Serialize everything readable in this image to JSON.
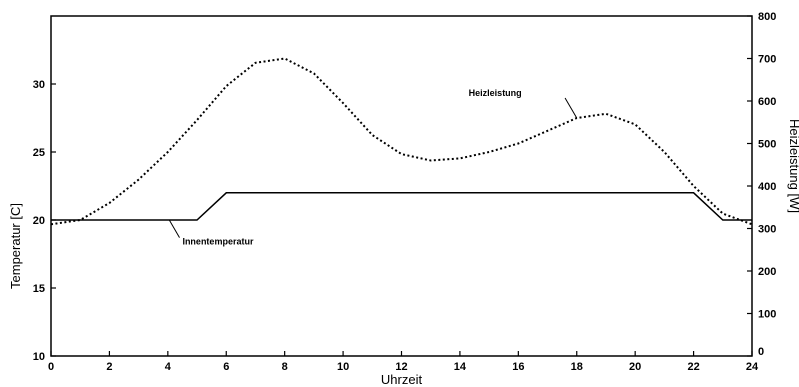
{
  "chart_data": {
    "type": "line",
    "title": "",
    "xlabel": "Uhrzeit",
    "ylabel_left": "Temperatur [C]",
    "ylabel_right": "Heizleistung [W]",
    "xlim": [
      0,
      24
    ],
    "ylim_left": [
      10,
      35
    ],
    "ylim_right": [
      0,
      800
    ],
    "x_ticks": [
      0,
      2,
      4,
      6,
      8,
      10,
      12,
      14,
      16,
      18,
      20,
      22,
      24
    ],
    "y_ticks_left": [
      10,
      15,
      20,
      25,
      30
    ],
    "y_ticks_right": [
      0,
      100,
      200,
      300,
      400,
      500,
      600,
      700,
      800
    ],
    "grid": false,
    "series": [
      {
        "name": "Heizleistung",
        "axis": "right",
        "style": "dotted",
        "x": [
          0,
          1,
          2,
          3,
          4,
          5,
          6,
          7,
          8,
          9,
          10,
          11,
          12,
          13,
          14,
          15,
          16,
          17,
          18,
          19,
          20,
          21,
          22,
          23,
          24
        ],
        "y": [
          310,
          320,
          360,
          415,
          480,
          555,
          635,
          690,
          700,
          665,
          595,
          520,
          475,
          460,
          465,
          480,
          500,
          530,
          560,
          570,
          545,
          480,
          400,
          335,
          310
        ]
      },
      {
        "name": "Innentemperatur",
        "axis": "left",
        "style": "solid",
        "x": [
          0,
          5,
          6,
          22,
          23,
          24
        ],
        "y": [
          20,
          20,
          22,
          22,
          20,
          20
        ]
      }
    ],
    "annotations": [
      {
        "text": "Heizleistung",
        "series": "Heizleistung"
      },
      {
        "text": "Innentemperatur",
        "series": "Innentemperatur"
      }
    ]
  }
}
